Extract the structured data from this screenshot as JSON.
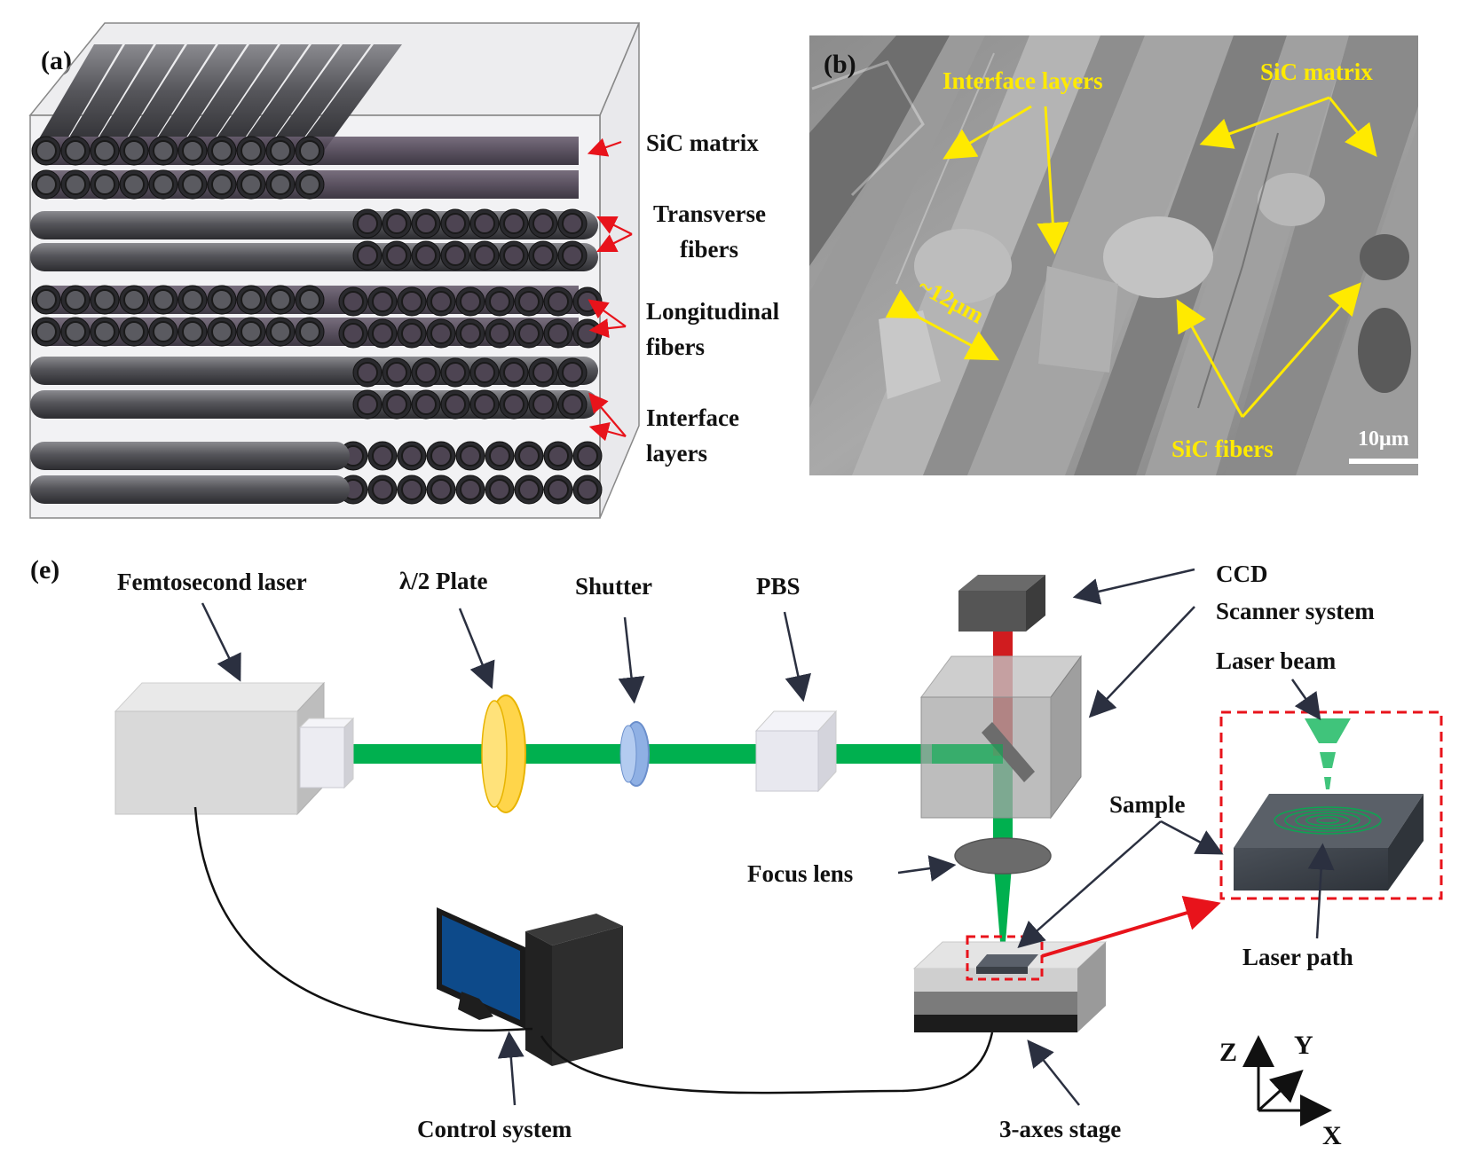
{
  "panel_a": {
    "label": "(a)",
    "annotations": {
      "matrix": "SiC matrix",
      "transverse_1": "Transverse",
      "transverse_2": "fibers",
      "longitudinal_1": "Longitudinal",
      "longitudinal_2": "fibers",
      "interface_1": "Interface",
      "interface_2": "layers"
    }
  },
  "panel_b": {
    "label": "(b)",
    "annotations": {
      "interface": "Interface layers",
      "matrix": "SiC matrix",
      "fiber_size": "~12μm",
      "fibers": "SiC fibers",
      "scale_bar": "10μm"
    }
  },
  "panel_e": {
    "label": "(e)",
    "components": {
      "laser": "Femtosecond laser",
      "half_wave": "λ/2 Plate",
      "shutter": "Shutter",
      "pbs": "PBS",
      "ccd": "CCD",
      "scanner": "Scanner system",
      "laser_beam": "Laser beam",
      "sample": "Sample",
      "focus_lens": "Focus lens",
      "laser_path": "Laser path",
      "control": "Control system",
      "stage": "3-axes stage"
    },
    "axes": {
      "z": "Z",
      "y": "Y",
      "x": "X"
    }
  },
  "colors": {
    "beam_green": "#00b04f",
    "red_beam": "#d01c1f",
    "yellow_label": "#ffea00",
    "red_arrow": "#e8131b",
    "dash_box": "#e8131b"
  }
}
